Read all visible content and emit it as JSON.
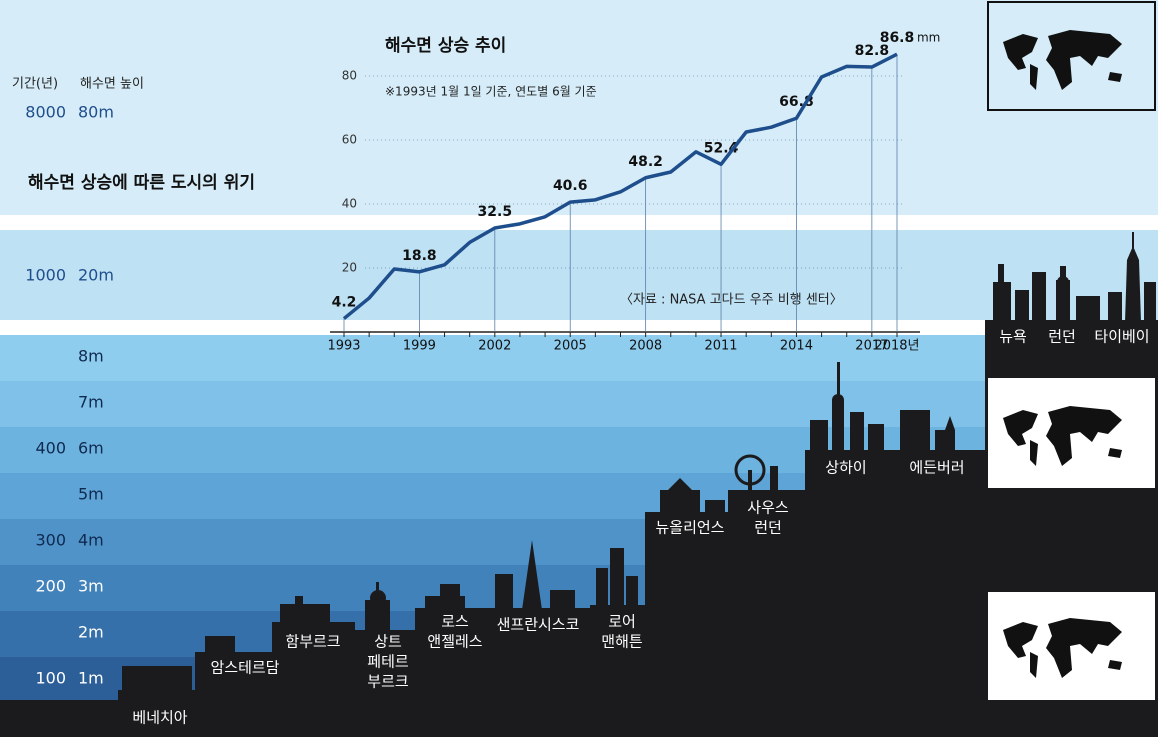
{
  "heading": "해수면 상승에 따른 도시의 위기",
  "scale": {
    "period_header": "기간(년)",
    "height_header": "해수면 높이",
    "rows": [
      {
        "period": "8000",
        "height": "80m"
      },
      {
        "period": "1000",
        "height": "20m"
      },
      {
        "height": "8m"
      },
      {
        "height": "7m"
      },
      {
        "period": "400",
        "height": "6m"
      },
      {
        "height": "5m"
      },
      {
        "period": "300",
        "height": "4m"
      },
      {
        "period": "200",
        "height": "3m"
      },
      {
        "height": "2m"
      },
      {
        "period": "100",
        "height": "1m"
      }
    ]
  },
  "cities": [
    [
      "베네치아"
    ],
    [
      "암스테르담"
    ],
    [
      "함부르크"
    ],
    [
      "상트",
      "페테르",
      "부르크"
    ],
    [
      "로스",
      "앤젤레스"
    ],
    [
      "샌프란시스코"
    ],
    [
      "로어",
      "맨해튼"
    ],
    [
      "뉴올리언스"
    ],
    [
      "사우스",
      "런던"
    ],
    [
      "상하이"
    ],
    [
      "에든버러"
    ],
    [
      "뉴욕"
    ],
    [
      "런던"
    ],
    [
      "타이베이"
    ]
  ],
  "chart_data": {
    "type": "line",
    "title": "해수면 상승 추이",
    "subtitle": "※1993년 1월 1일 기준, 연도별 6월 기준",
    "source": "〈자료 : NASA 고다드 우주 비행 센터〉",
    "value_unit": "mm",
    "categories": [
      "1993",
      null,
      null,
      "1999",
      null,
      null,
      "2002",
      null,
      null,
      "2005",
      null,
      null,
      "2008",
      null,
      null,
      "2011",
      null,
      null,
      "2014",
      null,
      null,
      "2017",
      "2018년"
    ],
    "series": [
      {
        "name": "해수면 높이",
        "color": "#1f4e8c",
        "values": [
          4.2,
          10.6,
          19.7,
          18.8,
          21,
          28,
          32.5,
          33.8,
          36,
          40.6,
          41.3,
          43.8,
          48.2,
          50,
          56.3,
          52.4,
          62.5,
          64,
          66.8,
          79.7,
          83,
          82.8,
          86.8
        ]
      }
    ],
    "ylim": [
      0,
      90
    ],
    "yticks": [
      20,
      40,
      60,
      80
    ],
    "grid": true
  }
}
